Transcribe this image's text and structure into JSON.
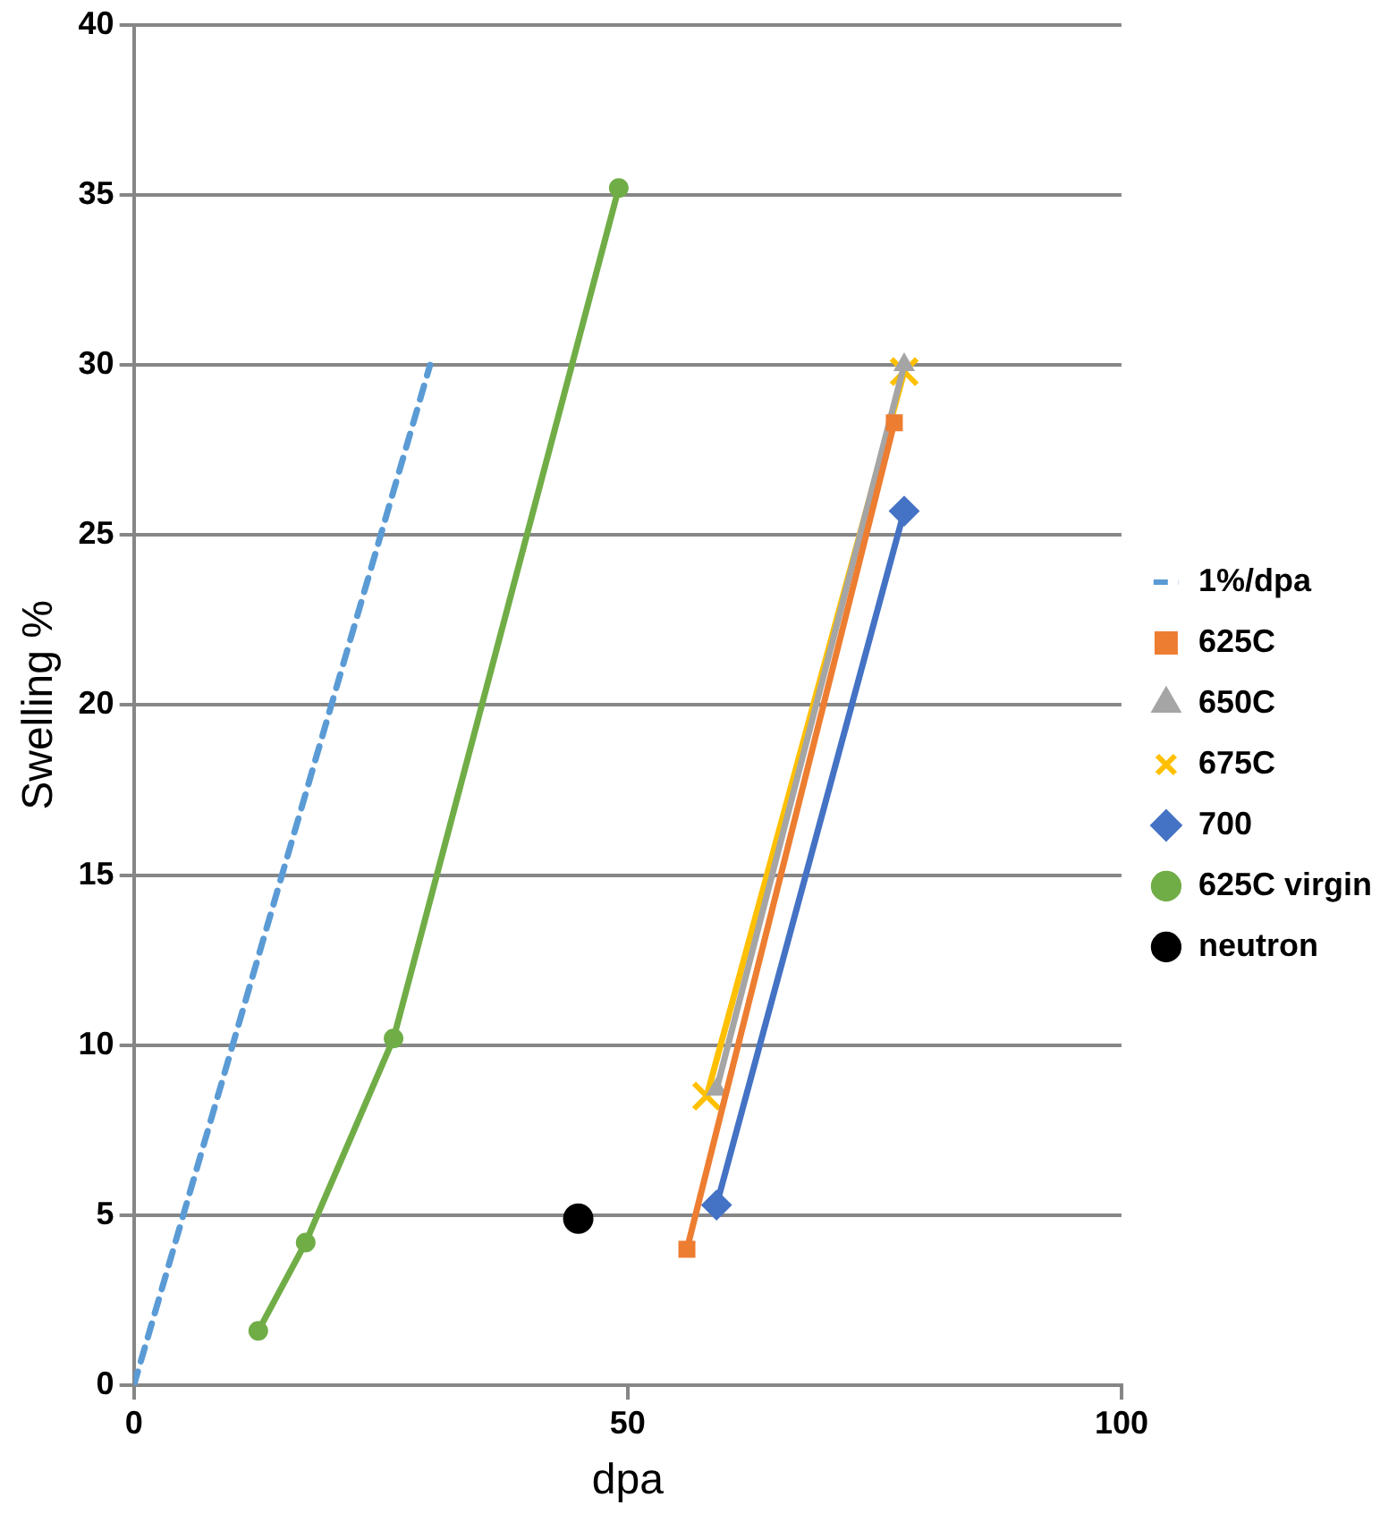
{
  "chart_data": {
    "type": "line",
    "xlabel": "dpa",
    "ylabel": "Swelling %",
    "xlim": [
      0,
      100
    ],
    "xticks": [
      0,
      50,
      100
    ],
    "ylim": [
      0,
      40
    ],
    "yticks": [
      0,
      5,
      10,
      15,
      20,
      25,
      30,
      35,
      40
    ],
    "grid": "y",
    "legend": "right",
    "series": [
      {
        "name": "1%/dpa",
        "color": "#5b9bd5",
        "x": [
          0,
          30
        ],
        "values": [
          0,
          30
        ],
        "marker": "none",
        "line_style": "dashed"
      },
      {
        "name": "625C",
        "color": "#ed7d31",
        "x": [
          56,
          77
        ],
        "values": [
          4,
          28.3
        ],
        "marker": "square"
      },
      {
        "name": "650C",
        "color": "#a5a5a5",
        "x": [
          59,
          78
        ],
        "values": [
          8.7,
          30
        ],
        "marker": "triangle"
      },
      {
        "name": "675C",
        "color": "#ffc000",
        "x": [
          58,
          78
        ],
        "values": [
          8.5,
          29.8
        ],
        "marker": "cross"
      },
      {
        "name": "700",
        "color": "#4472c4",
        "x": [
          59,
          78
        ],
        "values": [
          5.3,
          25.7
        ],
        "marker": "diamond"
      },
      {
        "name": "625C virgin",
        "color": "#70ad47",
        "x": [
          12.6,
          17.4,
          26.3,
          49.1
        ],
        "values": [
          1.6,
          4.2,
          10.2,
          35.2
        ],
        "marker": "circle"
      },
      {
        "name": "neutron",
        "type": "scatter",
        "color": "#000000",
        "x": [
          45
        ],
        "values": [
          4.9
        ],
        "marker": "circle"
      }
    ]
  }
}
